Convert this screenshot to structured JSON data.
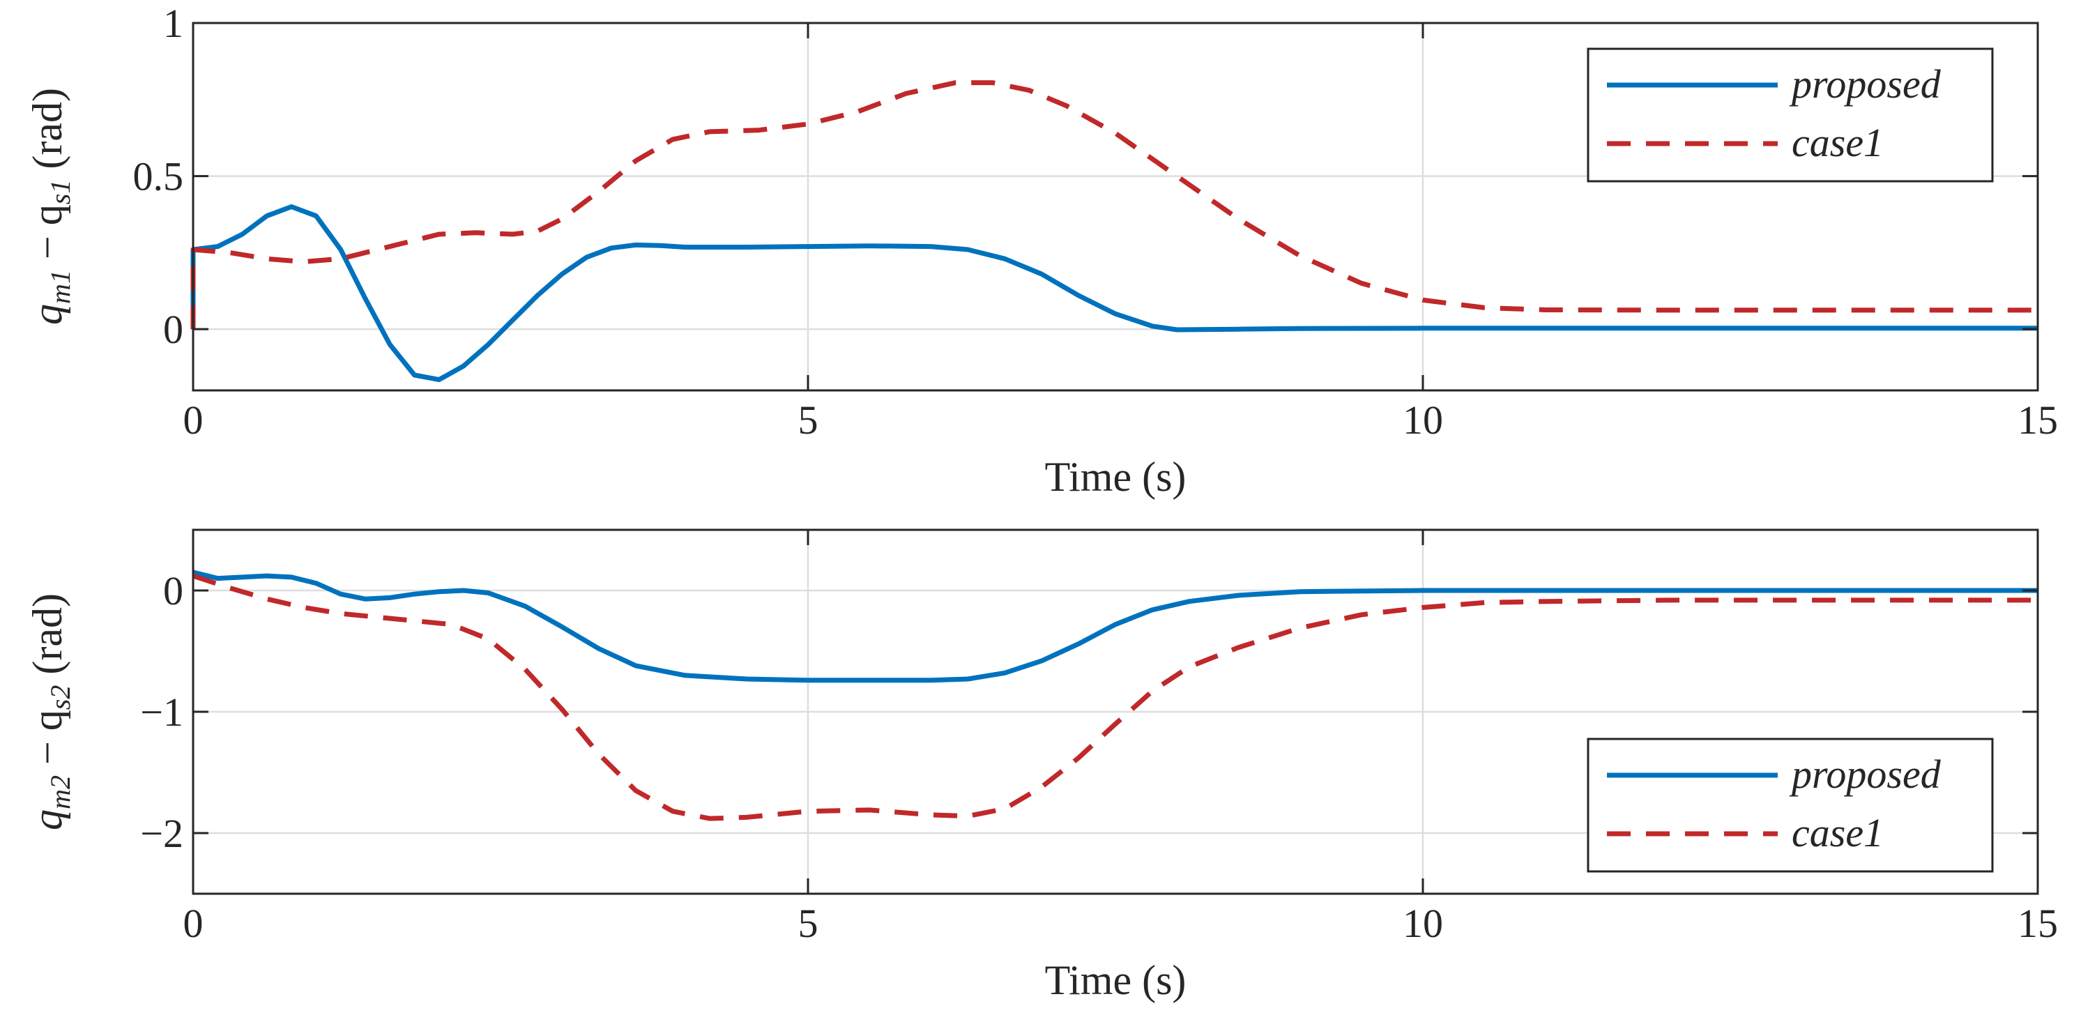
{
  "chart_data": [
    {
      "type": "line",
      "xlabel": "Time (s)",
      "ylabel": {
        "prefix": "q",
        "sub1": "m1",
        "mid": " − q",
        "sub2": "s1",
        "unit": " (rad)"
      },
      "xlim": [
        0,
        15
      ],
      "ylim": [
        -0.2,
        1
      ],
      "xticks": [
        0,
        5,
        10,
        15
      ],
      "xtick_labels": [
        "0",
        "5",
        "10",
        "15"
      ],
      "yticks": [
        0,
        0.5,
        1
      ],
      "ytick_labels": [
        "0",
        "0.5",
        "1"
      ],
      "grid": true,
      "legend_position": "top-right",
      "series": [
        {
          "name": "proposed",
          "color": "#0072BD",
          "style": "solid",
          "x": [
            0,
            0.0,
            0.2,
            0.4,
            0.6,
            0.8,
            1.0,
            1.2,
            1.4,
            1.6,
            1.8,
            2.0,
            2.2,
            2.4,
            2.6,
            2.8,
            3.0,
            3.2,
            3.4,
            3.6,
            3.8,
            4.0,
            4.5,
            5.0,
            5.5,
            6.0,
            6.3,
            6.6,
            6.9,
            7.2,
            7.5,
            7.8,
            8.0,
            8.5,
            9.0,
            10.0,
            11.0,
            12.0,
            13.0,
            14.0,
            15.0
          ],
          "values": [
            0,
            0.26,
            0.27,
            0.31,
            0.37,
            0.4,
            0.37,
            0.26,
            0.1,
            -0.05,
            -0.15,
            -0.165,
            -0.12,
            -0.05,
            0.03,
            0.11,
            0.18,
            0.235,
            0.265,
            0.275,
            0.273,
            0.268,
            0.268,
            0.27,
            0.272,
            0.27,
            0.26,
            0.23,
            0.18,
            0.11,
            0.05,
            0.01,
            -0.002,
            0.0,
            0.002,
            0.003,
            0.003,
            0.003,
            0.003,
            0.003,
            0.003
          ]
        },
        {
          "name": "case1",
          "color": "#C0282A",
          "style": "dashed",
          "x": [
            0,
            0.0,
            0.3,
            0.6,
            0.9,
            1.2,
            1.5,
            1.8,
            2.0,
            2.3,
            2.6,
            2.8,
            3.0,
            3.3,
            3.6,
            3.9,
            4.2,
            4.6,
            5.0,
            5.4,
            5.8,
            6.2,
            6.5,
            6.8,
            7.1,
            7.5,
            8.0,
            8.5,
            9.0,
            9.5,
            10.0,
            10.5,
            11.0,
            12.0,
            13.0,
            14.0,
            15.0
          ],
          "values": [
            0,
            0.26,
            0.25,
            0.23,
            0.22,
            0.23,
            0.26,
            0.29,
            0.31,
            0.315,
            0.31,
            0.32,
            0.36,
            0.45,
            0.55,
            0.62,
            0.645,
            0.65,
            0.67,
            0.71,
            0.77,
            0.805,
            0.805,
            0.78,
            0.73,
            0.64,
            0.5,
            0.36,
            0.24,
            0.15,
            0.095,
            0.07,
            0.063,
            0.062,
            0.062,
            0.062,
            0.062
          ]
        }
      ]
    },
    {
      "type": "line",
      "xlabel": "Time (s)",
      "ylabel": {
        "prefix": "q",
        "sub1": "m2",
        "mid": " − q",
        "sub2": "s2",
        "unit": " (rad)"
      },
      "xlim": [
        0,
        15
      ],
      "ylim": [
        -2.5,
        0.5
      ],
      "xticks": [
        0,
        5,
        10,
        15
      ],
      "xtick_labels": [
        "0",
        "5",
        "10",
        "15"
      ],
      "yticks": [
        -2,
        -1,
        0
      ],
      "ytick_labels": [
        "−2",
        "−1",
        "0"
      ],
      "grid": true,
      "legend_position": "bottom-right",
      "series": [
        {
          "name": "proposed",
          "color": "#0072BD",
          "style": "solid",
          "x": [
            0,
            0.2,
            0.4,
            0.6,
            0.8,
            1.0,
            1.2,
            1.4,
            1.6,
            1.8,
            2.0,
            2.2,
            2.4,
            2.7,
            3.0,
            3.3,
            3.6,
            4.0,
            4.5,
            5.0,
            5.5,
            6.0,
            6.3,
            6.6,
            6.9,
            7.2,
            7.5,
            7.8,
            8.1,
            8.5,
            9.0,
            10.0,
            11.0,
            12.0,
            13.0,
            14.0,
            15.0
          ],
          "values": [
            0.15,
            0.1,
            0.11,
            0.12,
            0.11,
            0.06,
            -0.03,
            -0.07,
            -0.06,
            -0.03,
            -0.01,
            0.0,
            -0.02,
            -0.13,
            -0.3,
            -0.48,
            -0.62,
            -0.7,
            -0.73,
            -0.74,
            -0.74,
            -0.74,
            -0.73,
            -0.68,
            -0.58,
            -0.44,
            -0.28,
            -0.16,
            -0.09,
            -0.04,
            -0.01,
            0.0,
            0.0,
            0.0,
            0.0,
            0.0,
            0.0
          ]
        },
        {
          "name": "case1",
          "color": "#C0282A",
          "style": "dashed",
          "x": [
            0,
            0.3,
            0.6,
            0.9,
            1.2,
            1.5,
            1.8,
            2.1,
            2.4,
            2.7,
            3.0,
            3.3,
            3.6,
            3.9,
            4.2,
            4.5,
            5.0,
            5.5,
            6.0,
            6.3,
            6.6,
            6.9,
            7.2,
            7.5,
            7.8,
            8.1,
            8.5,
            9.0,
            9.5,
            10.0,
            10.5,
            11.0,
            12.0,
            13.0,
            14.0,
            15.0
          ],
          "values": [
            0.12,
            0.02,
            -0.07,
            -0.14,
            -0.19,
            -0.22,
            -0.25,
            -0.28,
            -0.4,
            -0.65,
            -0.98,
            -1.35,
            -1.65,
            -1.82,
            -1.88,
            -1.87,
            -1.82,
            -1.81,
            -1.85,
            -1.86,
            -1.8,
            -1.62,
            -1.38,
            -1.1,
            -0.83,
            -0.63,
            -0.47,
            -0.31,
            -0.2,
            -0.14,
            -0.1,
            -0.09,
            -0.08,
            -0.08,
            -0.08,
            -0.08
          ]
        }
      ]
    }
  ]
}
